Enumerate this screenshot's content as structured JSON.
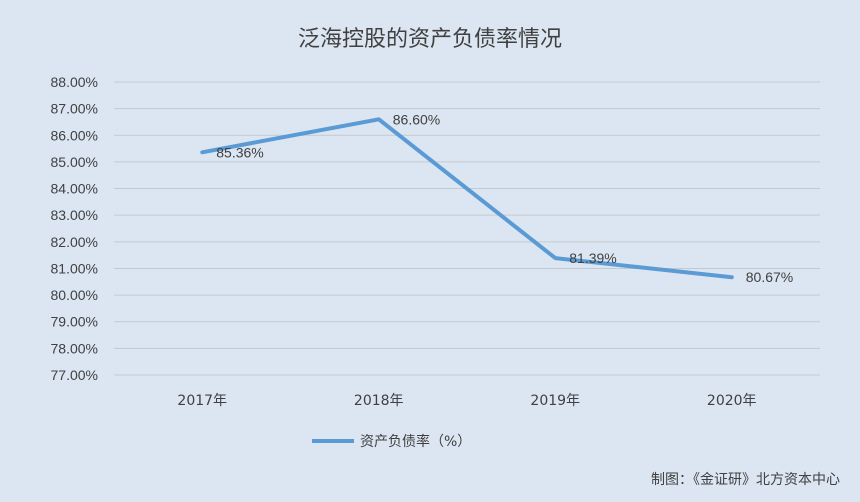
{
  "chart_data": {
    "type": "line",
    "title": "泛海控股的资产负债率情况",
    "categories": [
      "2017年",
      "2018年",
      "2019年",
      "2020年"
    ],
    "series": [
      {
        "name": "资产负债率（%）",
        "values": [
          85.36,
          86.6,
          81.39,
          80.67
        ],
        "labels": [
          "85.36%",
          "86.60%",
          "81.39%",
          "80.67%"
        ],
        "color": "#5b9bd5"
      }
    ],
    "ylim": [
      77,
      88
    ],
    "yticks": [
      "77.00%",
      "78.00%",
      "79.00%",
      "80.00%",
      "81.00%",
      "82.00%",
      "83.00%",
      "84.00%",
      "85.00%",
      "86.00%",
      "87.00%",
      "88.00%"
    ],
    "grid": true,
    "legend": "bottom-center"
  },
  "source": "制图：《金证研》北方资本中心"
}
